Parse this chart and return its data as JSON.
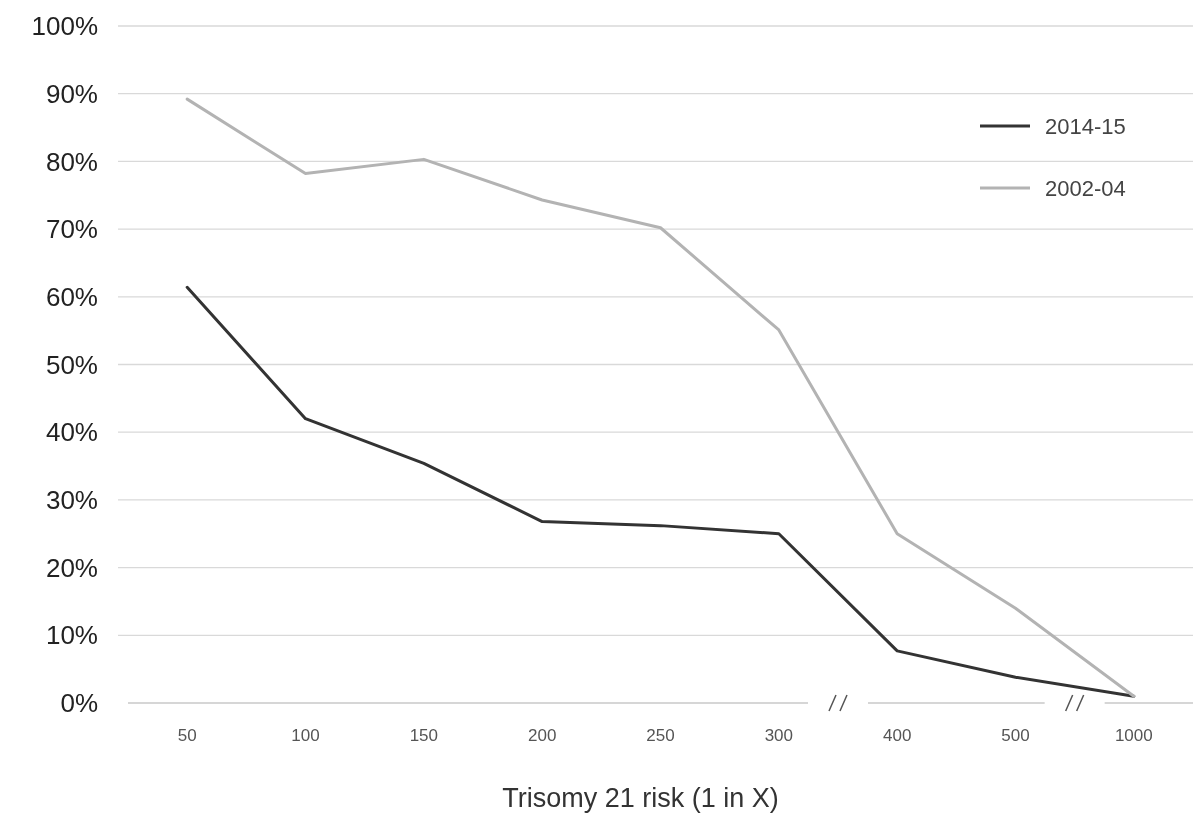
{
  "chart_data": {
    "type": "line",
    "xlabel": "Trisomy 21 risk (1 in X)",
    "categories": [
      "50",
      "100",
      "150",
      "200",
      "250",
      "300",
      "400",
      "500",
      "1000"
    ],
    "series": [
      {
        "name": "2014-15",
        "color": "#333333",
        "values": [
          61.4,
          42,
          35.4,
          26.8,
          26.2,
          25,
          7.7,
          3.8,
          1
        ]
      },
      {
        "name": "2002-04",
        "color": "#b3b3b3",
        "values": [
          89.2,
          78.2,
          80.3,
          74.3,
          70.2,
          55.1,
          25,
          14,
          1
        ]
      }
    ],
    "ylim": [
      0,
      100
    ],
    "yticks": [
      {
        "value": 0,
        "label": "0%"
      },
      {
        "value": 10,
        "label": "10%"
      },
      {
        "value": 20,
        "label": "20%"
      },
      {
        "value": 30,
        "label": "30%"
      },
      {
        "value": 40,
        "label": "40%"
      },
      {
        "value": 50,
        "label": "50%"
      },
      {
        "value": 60,
        "label": "60%"
      },
      {
        "value": 70,
        "label": "70%"
      },
      {
        "value": 80,
        "label": "80%"
      },
      {
        "value": 90,
        "label": "90%"
      },
      {
        "value": 100,
        "label": "100%"
      }
    ],
    "grid": "y",
    "legend": "top right",
    "marker": "none",
    "line_style": "solid"
  }
}
